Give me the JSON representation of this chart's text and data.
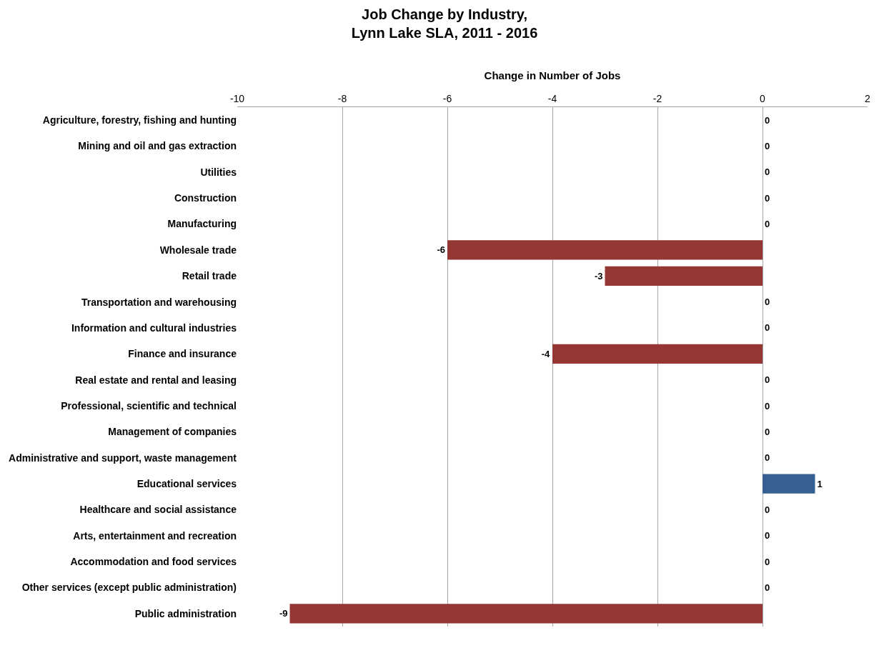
{
  "chart_data": {
    "type": "bar",
    "orientation": "horizontal",
    "title": "Job Change by Industry,\nLynn Lake SLA, 2011 - 2016",
    "xlabel": "Change in Number of Jobs",
    "categories": [
      "Agriculture, forestry, fishing and hunting",
      "Mining and oil and gas extraction",
      "Utilities",
      "Construction",
      "Manufacturing",
      "Wholesale trade",
      "Retail trade",
      "Transportation and warehousing",
      "Information and cultural industries",
      "Finance and insurance",
      "Real estate and rental and leasing",
      "Professional, scientific and technical",
      "Management of companies",
      "Administrative and support, waste management",
      "Educational services",
      "Healthcare and social assistance",
      "Arts, entertainment and recreation",
      "Accommodation and food services",
      "Other services (except public administration)",
      "Public administration"
    ],
    "values": [
      0,
      0,
      0,
      0,
      0,
      -6,
      -3,
      0,
      0,
      -4,
      0,
      0,
      0,
      0,
      1,
      0,
      0,
      0,
      0,
      -9
    ],
    "colors": [
      null,
      null,
      null,
      null,
      null,
      "#943634",
      "#943634",
      null,
      null,
      "#943634",
      null,
      null,
      null,
      null,
      "#366092",
      null,
      null,
      null,
      null,
      "#943634"
    ],
    "xlim": [
      -10,
      2
    ],
    "xticks": [
      -10,
      -8,
      -6,
      -4,
      -2,
      0,
      2
    ],
    "grid": "x",
    "data_labels": true,
    "legend": false
  }
}
